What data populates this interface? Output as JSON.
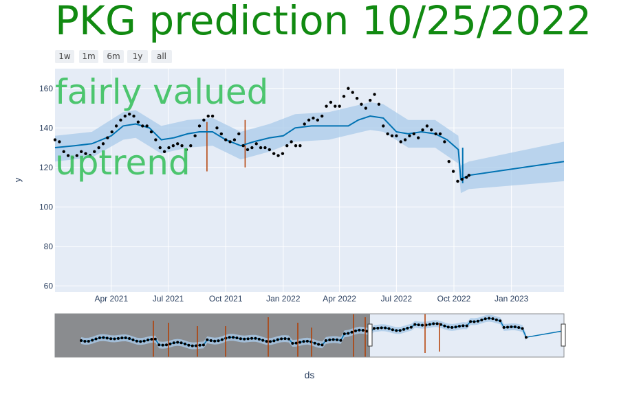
{
  "page_title": "PKG prediction 10/25/2022",
  "range_buttons": [
    "1w",
    "1m",
    "6m",
    "1y",
    "all"
  ],
  "annotations": [
    "fairly valued",
    "uptrend"
  ],
  "colors": {
    "title": "#118a11",
    "annotation": "#3cc160",
    "plot_bg": "#e5ecf6",
    "trend": "#0072b2",
    "band": "#a9cbea",
    "points": "#000000",
    "changepoints": "#b33c00",
    "slider_mask": "#8a8c8f"
  },
  "chart_data": {
    "type": "line",
    "title": "PKG prediction 10/25/2022",
    "xlabel": "ds",
    "ylabel": "y",
    "ylim": [
      57,
      170
    ],
    "xlim": [
      "2021-01-01",
      "2023-03-26"
    ],
    "yticks": [
      60,
      80,
      100,
      120,
      140,
      160
    ],
    "xticks": [
      {
        "date": "2021-04-01",
        "label": "Apr 2021"
      },
      {
        "date": "2021-07-01",
        "label": "Jul 2021"
      },
      {
        "date": "2021-10-01",
        "label": "Oct 2021"
      },
      {
        "date": "2022-01-01",
        "label": "Jan 2022"
      },
      {
        "date": "2022-04-01",
        "label": "Apr 2022"
      },
      {
        "date": "2022-07-01",
        "label": "Jul 2022"
      },
      {
        "date": "2022-10-01",
        "label": "Oct 2022"
      },
      {
        "date": "2023-01-01",
        "label": "Jan 2023"
      }
    ],
    "grid": true,
    "series": [
      {
        "role": "actual",
        "points": [
          [
            "2021-01-01",
            134
          ],
          [
            "2021-01-08",
            133
          ],
          [
            "2021-01-15",
            128
          ],
          [
            "2021-01-22",
            126
          ],
          [
            "2021-01-29",
            125
          ],
          [
            "2021-02-05",
            126
          ],
          [
            "2021-02-12",
            128
          ],
          [
            "2021-02-19",
            127
          ],
          [
            "2021-02-26",
            126
          ],
          [
            "2021-03-05",
            128
          ],
          [
            "2021-03-12",
            130
          ],
          [
            "2021-03-19",
            132
          ],
          [
            "2021-03-26",
            135
          ],
          [
            "2021-04-02",
            138
          ],
          [
            "2021-04-09",
            141
          ],
          [
            "2021-04-16",
            144
          ],
          [
            "2021-04-23",
            146
          ],
          [
            "2021-04-30",
            147
          ],
          [
            "2021-05-07",
            146
          ],
          [
            "2021-05-14",
            143
          ],
          [
            "2021-05-21",
            141
          ],
          [
            "2021-05-28",
            141
          ],
          [
            "2021-06-04",
            138
          ],
          [
            "2021-06-11",
            134
          ],
          [
            "2021-06-18",
            130
          ],
          [
            "2021-06-25",
            128
          ],
          [
            "2021-07-02",
            130
          ],
          [
            "2021-07-09",
            131
          ],
          [
            "2021-07-16",
            132
          ],
          [
            "2021-07-23",
            131
          ],
          [
            "2021-07-30",
            129
          ],
          [
            "2021-08-06",
            131
          ],
          [
            "2021-08-13",
            136
          ],
          [
            "2021-08-20",
            141
          ],
          [
            "2021-08-27",
            144
          ],
          [
            "2021-09-03",
            146
          ],
          [
            "2021-09-10",
            146
          ],
          [
            "2021-09-17",
            140
          ],
          [
            "2021-09-24",
            137
          ],
          [
            "2021-10-01",
            134
          ],
          [
            "2021-10-08",
            133
          ],
          [
            "2021-10-15",
            134
          ],
          [
            "2021-10-22",
            137
          ],
          [
            "2021-10-29",
            131
          ],
          [
            "2021-11-05",
            129
          ],
          [
            "2021-11-12",
            130
          ],
          [
            "2021-11-19",
            132
          ],
          [
            "2021-11-26",
            130
          ],
          [
            "2021-12-03",
            130
          ],
          [
            "2021-12-10",
            129
          ],
          [
            "2021-12-17",
            127
          ],
          [
            "2021-12-24",
            126
          ],
          [
            "2021-12-31",
            127
          ],
          [
            "2022-01-07",
            131
          ],
          [
            "2022-01-14",
            133
          ],
          [
            "2022-01-21",
            131
          ],
          [
            "2022-01-28",
            131
          ],
          [
            "2022-02-04",
            142
          ],
          [
            "2022-02-11",
            144
          ],
          [
            "2022-02-18",
            145
          ],
          [
            "2022-02-25",
            144
          ],
          [
            "2022-03-04",
            146
          ],
          [
            "2022-03-11",
            151
          ],
          [
            "2022-03-18",
            153
          ],
          [
            "2022-03-25",
            151
          ],
          [
            "2022-04-01",
            151
          ],
          [
            "2022-04-08",
            156
          ],
          [
            "2022-04-15",
            160
          ],
          [
            "2022-04-22",
            158
          ],
          [
            "2022-04-29",
            155
          ],
          [
            "2022-05-06",
            152
          ],
          [
            "2022-05-13",
            150
          ],
          [
            "2022-05-20",
            154
          ],
          [
            "2022-05-27",
            157
          ],
          [
            "2022-06-03",
            152
          ],
          [
            "2022-06-10",
            141
          ],
          [
            "2022-06-17",
            137
          ],
          [
            "2022-06-24",
            136
          ],
          [
            "2022-07-01",
            136
          ],
          [
            "2022-07-08",
            133
          ],
          [
            "2022-07-15",
            134
          ],
          [
            "2022-07-22",
            136
          ],
          [
            "2022-07-29",
            137
          ],
          [
            "2022-08-05",
            135
          ],
          [
            "2022-08-12",
            139
          ],
          [
            "2022-08-19",
            141
          ],
          [
            "2022-08-26",
            139
          ],
          [
            "2022-09-02",
            137
          ],
          [
            "2022-09-09",
            137
          ],
          [
            "2022-09-16",
            133
          ],
          [
            "2022-09-23",
            123
          ],
          [
            "2022-09-30",
            118
          ],
          [
            "2022-10-07",
            113
          ],
          [
            "2022-10-14",
            114
          ],
          [
            "2022-10-21",
            115
          ],
          [
            "2022-10-25",
            116
          ]
        ]
      },
      {
        "role": "trend",
        "points": [
          [
            "2021-01-01",
            130
          ],
          [
            "2021-02-01",
            131
          ],
          [
            "2021-03-01",
            132
          ],
          [
            "2021-04-01",
            136
          ],
          [
            "2021-04-20",
            141
          ],
          [
            "2021-05-10",
            142
          ],
          [
            "2021-06-01",
            140
          ],
          [
            "2021-06-20",
            134
          ],
          [
            "2021-07-10",
            135
          ],
          [
            "2021-08-01",
            137
          ],
          [
            "2021-08-20",
            138
          ],
          [
            "2021-09-10",
            138
          ],
          [
            "2021-10-01",
            134
          ],
          [
            "2021-10-25",
            131
          ],
          [
            "2021-11-15",
            133
          ],
          [
            "2021-12-10",
            135
          ],
          [
            "2022-01-01",
            136
          ],
          [
            "2022-01-20",
            140
          ],
          [
            "2022-02-15",
            141
          ],
          [
            "2022-03-15",
            141
          ],
          [
            "2022-04-15",
            141
          ],
          [
            "2022-05-01",
            144
          ],
          [
            "2022-05-20",
            146
          ],
          [
            "2022-06-10",
            145
          ],
          [
            "2022-07-01",
            138
          ],
          [
            "2022-07-20",
            137
          ],
          [
            "2022-08-10",
            138
          ],
          [
            "2022-09-01",
            137
          ],
          [
            "2022-09-20",
            134
          ],
          [
            "2022-10-08",
            129
          ],
          [
            "2022-10-12",
            114
          ],
          [
            "2022-10-25",
            116
          ],
          [
            "2023-03-26",
            123
          ]
        ]
      },
      {
        "role": "uncertainty_band",
        "upper": [
          [
            "2021-01-01",
            136
          ],
          [
            "2021-03-01",
            138
          ],
          [
            "2021-04-20",
            148
          ],
          [
            "2021-05-10",
            149
          ],
          [
            "2021-06-20",
            141
          ],
          [
            "2021-08-01",
            144
          ],
          [
            "2021-09-10",
            145
          ],
          [
            "2021-10-25",
            138
          ],
          [
            "2021-12-10",
            142
          ],
          [
            "2022-01-20",
            147
          ],
          [
            "2022-03-15",
            148
          ],
          [
            "2022-05-20",
            153
          ],
          [
            "2022-06-10",
            152
          ],
          [
            "2022-07-20",
            144
          ],
          [
            "2022-09-01",
            144
          ],
          [
            "2022-10-08",
            136
          ],
          [
            "2022-10-12",
            121
          ],
          [
            "2022-10-25",
            123
          ],
          [
            "2023-03-26",
            133
          ]
        ],
        "lower": [
          [
            "2021-01-01",
            123
          ],
          [
            "2021-03-01",
            125
          ],
          [
            "2021-04-20",
            134
          ],
          [
            "2021-05-10",
            135
          ],
          [
            "2021-06-20",
            127
          ],
          [
            "2021-08-01",
            130
          ],
          [
            "2021-09-10",
            131
          ],
          [
            "2021-10-25",
            124
          ],
          [
            "2021-12-10",
            128
          ],
          [
            "2022-01-20",
            133
          ],
          [
            "2022-03-15",
            134
          ],
          [
            "2022-05-20",
            139
          ],
          [
            "2022-06-10",
            138
          ],
          [
            "2022-07-20",
            130
          ],
          [
            "2022-09-01",
            130
          ],
          [
            "2022-10-08",
            122
          ],
          [
            "2022-10-12",
            107
          ],
          [
            "2022-10-25",
            109
          ],
          [
            "2023-03-26",
            113
          ]
        ]
      }
    ],
    "changepoints": [
      {
        "date": "2021-09-01",
        "low": 118,
        "high": 143
      },
      {
        "date": "2021-11-01",
        "low": 120,
        "high": 144
      },
      {
        "date": "2022-10-15",
        "low": 112,
        "high": 130
      }
    ],
    "rangeslider": {
      "window": [
        "2021-01-01",
        "2023-03-26"
      ],
      "changepoints_full_history": [
        "2019-08-20",
        "2019-09-25",
        "2019-11-20",
        "2020-01-15",
        "2020-03-15",
        "2020-05-20",
        "2020-06-25",
        "2020-08-20",
        "2020-11-25",
        "2021-01-01",
        "2022-04-20",
        "2022-06-15"
      ]
    }
  }
}
